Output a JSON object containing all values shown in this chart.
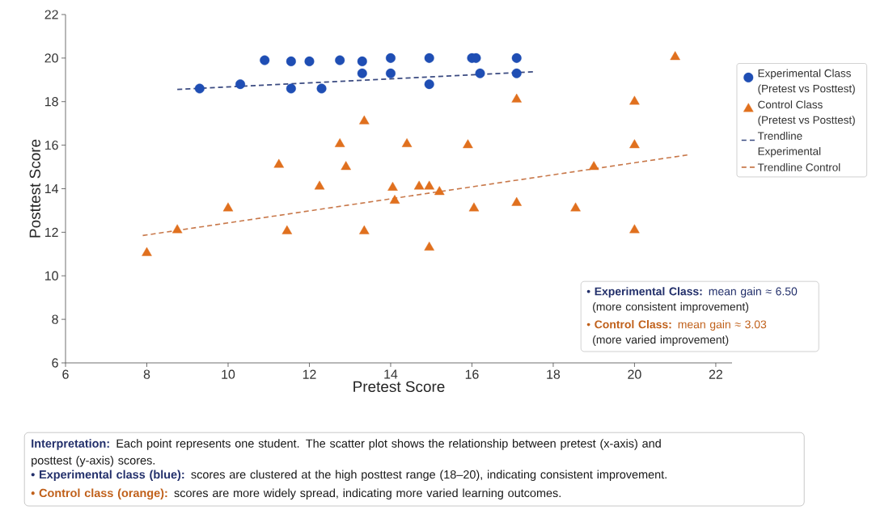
{
  "chart_data": {
    "type": "scatter",
    "xlabel": "Pretest Score",
    "ylabel": "Posttest Score",
    "xlim": [
      6,
      22.4
    ],
    "ylim": [
      6,
      22
    ],
    "xticks": [
      6,
      8,
      10,
      12,
      14,
      16,
      18,
      20,
      22
    ],
    "yticks": [
      6,
      8,
      10,
      12,
      14,
      16,
      18,
      20,
      22
    ],
    "legend": "right",
    "grid": false,
    "series": [
      {
        "name": "Experimental Class (Pretest vs Posttest)",
        "marker": "circle",
        "color": "#1f4eb4",
        "x": [
          9.3,
          10.3,
          10.9,
          11.55,
          11.55,
          12.0,
          12.3,
          12.75,
          13.3,
          13.3,
          14.0,
          14.0,
          14.95,
          14.95,
          16.0,
          16.1,
          16.2,
          17.1,
          17.1
        ],
        "values": [
          18.6,
          18.8,
          19.9,
          19.85,
          18.6,
          19.85,
          18.6,
          19.9,
          19.85,
          19.3,
          20.0,
          19.3,
          20.0,
          18.8,
          20.0,
          20.0,
          19.3,
          20.0,
          19.3
        ]
      },
      {
        "name": "Control Class (Pretest vs Posttest)",
        "marker": "triangle",
        "color": "#e0701e",
        "x": [
          8.0,
          8.75,
          10.0,
          11.25,
          11.45,
          12.25,
          12.75,
          12.9,
          13.35,
          13.35,
          14.05,
          14.1,
          14.4,
          14.7,
          14.95,
          14.95,
          15.2,
          15.9,
          16.05,
          17.1,
          17.1,
          18.55,
          19.0,
          20.0,
          20.0,
          20.0,
          21.0
        ],
        "values": [
          11.05,
          12.1,
          13.1,
          15.1,
          12.05,
          14.1,
          16.05,
          15.0,
          17.1,
          12.05,
          14.05,
          13.45,
          16.05,
          14.1,
          14.1,
          11.3,
          13.85,
          16.0,
          13.1,
          18.1,
          13.35,
          13.1,
          15.0,
          18.0,
          16.0,
          12.1,
          20.05
        ]
      },
      {
        "name": "Trendline Experimental",
        "type": "line",
        "marker": "none",
        "line_style": "dashed",
        "color": "#3a4a80",
        "x": [
          8.75,
          17.5
        ],
        "values": [
          18.56,
          19.37
        ]
      },
      {
        "name": "Trendline Control",
        "type": "line",
        "marker": "none",
        "line_style": "dashed",
        "color": "#c8784a",
        "x": [
          7.9,
          21.3
        ],
        "values": [
          11.85,
          15.55
        ]
      }
    ],
    "annotations": [
      "• **Experimental Class:** mean gain ≈ 6.50",
      "(more consistent improvement)",
      "• **Control Class:** mean gain ≈ 3.03",
      "(more varied improvement)",
      "Interpretation:",
      "Each point represents one student. The scatter plot shows the relationship between pretest (x-axis) and posttest (y-axis) scores.",
      "• Experimental class (blue):",
      "scores are clustered at the high posttest range (18–20), indicating consistent improvement.",
      "• Control class (orange):",
      "scores are more widely spread, indicating more varied learning outcomes."
    ]
  }
}
